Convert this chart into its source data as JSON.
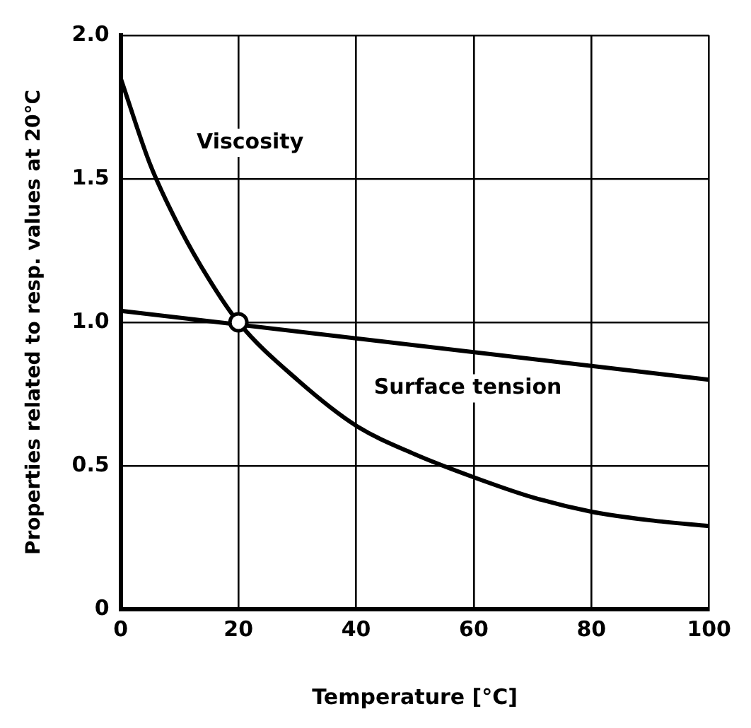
{
  "chart_data": {
    "type": "line",
    "xlabel": "Temperature [°C]",
    "ylabel": "Properties related to resp. values at 20°C",
    "x": [
      0,
      5,
      10,
      15,
      20,
      30,
      40,
      50,
      60,
      70,
      80,
      90,
      100
    ],
    "series": [
      {
        "name": "Viscosity",
        "color": "#000000",
        "values": [
          1.85,
          1.55,
          1.33,
          1.15,
          1.0,
          0.8,
          0.64,
          0.54,
          0.46,
          0.39,
          0.34,
          0.31,
          0.29
        ]
      },
      {
        "name": "Surface tension",
        "color": "#000000",
        "x": [
          0,
          100
        ],
        "values": [
          1.04,
          0.8
        ]
      },
      {
        "type": "scatter",
        "marker": "circle",
        "color": "#000000",
        "x": [
          20
        ],
        "values": [
          1.0
        ]
      }
    ],
    "xlim": [
      0,
      100
    ],
    "xticks": [
      0,
      20,
      40,
      60,
      80,
      100
    ],
    "ylim": [
      0,
      2
    ],
    "yticks": [
      0,
      0.5,
      {
        "value": 1,
        "label": "1.0"
      },
      1.5,
      {
        "value": 2,
        "label": "2.0"
      }
    ],
    "grid": true,
    "legend": false,
    "marker": "none",
    "line_style": "solid"
  }
}
